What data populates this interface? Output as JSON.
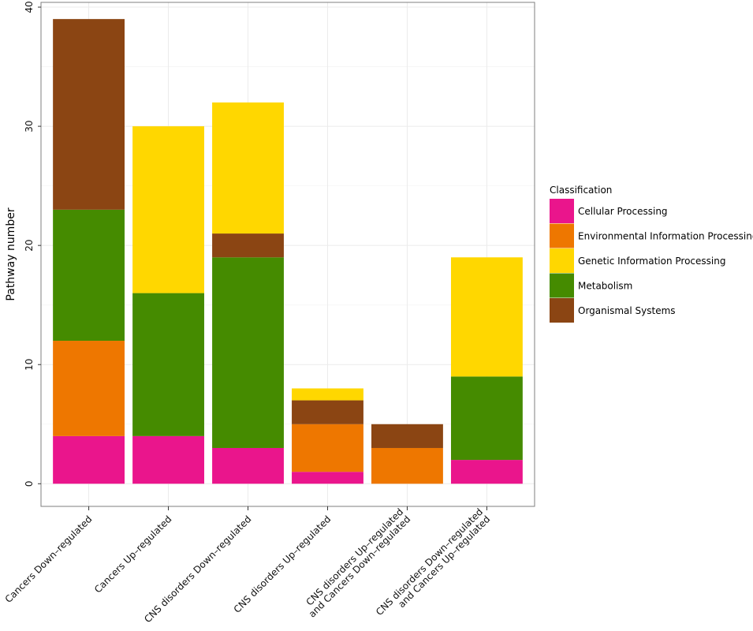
{
  "chart_data": {
    "type": "bar",
    "stacked": true,
    "ylabel": "Pathway number",
    "xlabel": "",
    "ylim": [
      -1.9,
      40.4
    ],
    "yticks": [
      0,
      10,
      20,
      30,
      40
    ],
    "grid": true,
    "legend_position": "right",
    "legend_title": "Classification",
    "categories": [
      [
        "Cancers Down–regulated"
      ],
      [
        "Cancers Up–regulated"
      ],
      [
        "CNS disorders Down–regulated"
      ],
      [
        "CNS disorders Up–regulated"
      ],
      [
        "CNS disorders Up–regulated",
        "and Cancers Down–regulated"
      ],
      [
        "CNS disorders Down–regulated",
        "and Cancers Up–regulated"
      ]
    ],
    "series": [
      {
        "name": "Cellular Processing",
        "color": "#ea158c",
        "values": [
          4,
          4,
          3,
          1,
          0,
          2
        ]
      },
      {
        "name": "Environmental Information Processing",
        "color": "#ee7700",
        "values": [
          8,
          0,
          0,
          4,
          3,
          0
        ]
      },
      {
        "name": "Metabolism",
        "color": "#458b00",
        "values": [
          11,
          12,
          16,
          0,
          0,
          7
        ]
      },
      {
        "name": "Organismal Systems",
        "color": "#8b4513",
        "values": [
          16,
          0,
          2,
          2,
          2,
          0
        ]
      },
      {
        "name": "Genetic Information Processing",
        "color": "#ffd700",
        "values": [
          0,
          14,
          11,
          1,
          0,
          10
        ]
      }
    ],
    "legend_order": [
      "Cellular Processing",
      "Environmental Information Processing",
      "Genetic Information Processing",
      "Metabolism",
      "Organismal Systems"
    ]
  }
}
